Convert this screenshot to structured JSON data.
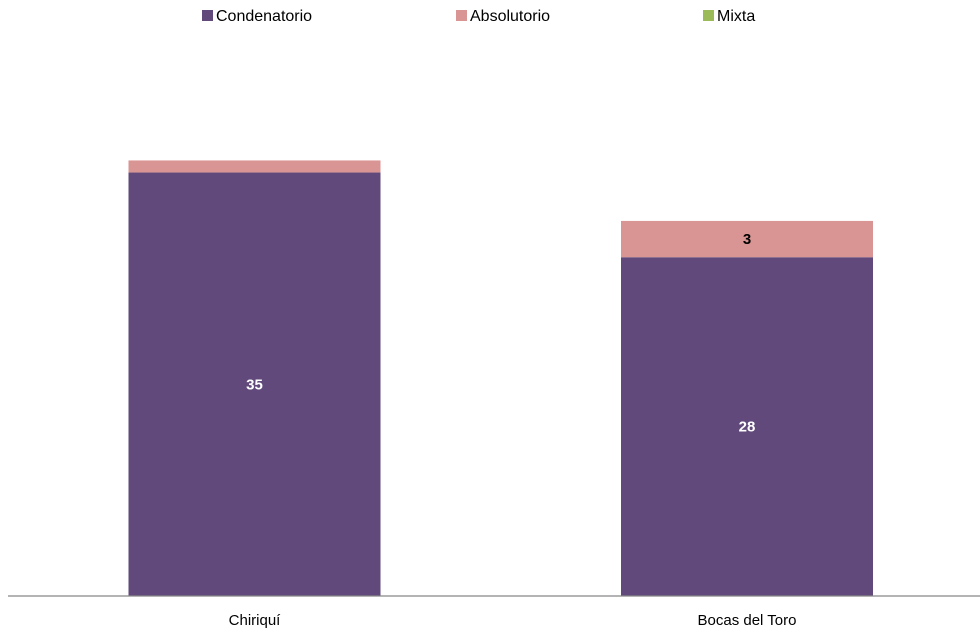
{
  "chart_data": {
    "type": "bar",
    "stacked": true,
    "categories": [
      "Chiriquí",
      "Bocas del Toro"
    ],
    "series": [
      {
        "name": "Condenatorio",
        "values": [
          35,
          28
        ],
        "color": "#614a7b",
        "labels": [
          "35",
          "28"
        ],
        "label_color": "#ffffff"
      },
      {
        "name": "Absolutorio",
        "values": [
          1,
          3
        ],
        "color": "#d99593",
        "labels": [
          "",
          "3"
        ],
        "label_color": "#000000"
      },
      {
        "name": "Mixta",
        "values": [
          0,
          0
        ],
        "color": "#9bbb59",
        "labels": [
          "",
          ""
        ],
        "label_color": "#000000"
      }
    ],
    "ylim": [
      0,
      42.4
    ],
    "grid": false,
    "legend": "top"
  }
}
